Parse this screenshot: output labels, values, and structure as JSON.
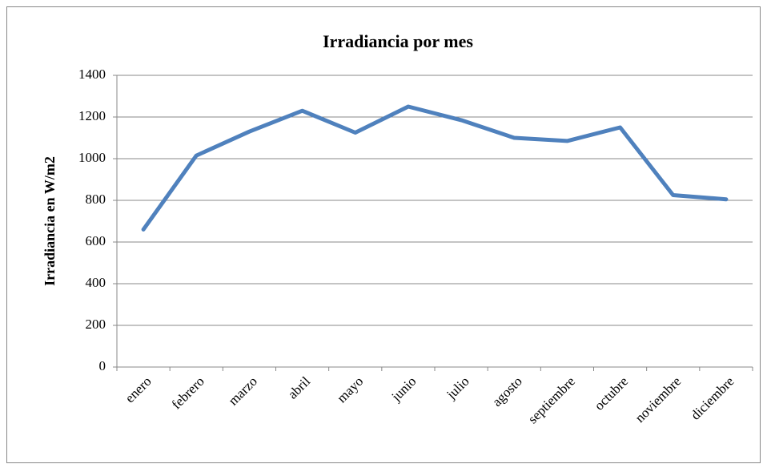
{
  "chart_data": {
    "type": "line",
    "title": "Irradiancia por mes",
    "y_label": "Irradiancia en W/m2",
    "categories": [
      "enero",
      "febrero",
      "marzo",
      "abril",
      "mayo",
      "junio",
      "julio",
      "agosto",
      "septiembre",
      "octubre",
      "noviembre",
      "diciembre"
    ],
    "values": [
      660,
      1015,
      1130,
      1230,
      1125,
      1250,
      1185,
      1100,
      1085,
      1150,
      825,
      805
    ],
    "color": "#4f81bd",
    "ylim": [
      0,
      1400
    ],
    "yticks": [
      0,
      200,
      400,
      600,
      800,
      1000,
      1200,
      1400
    ],
    "grid": true
  }
}
